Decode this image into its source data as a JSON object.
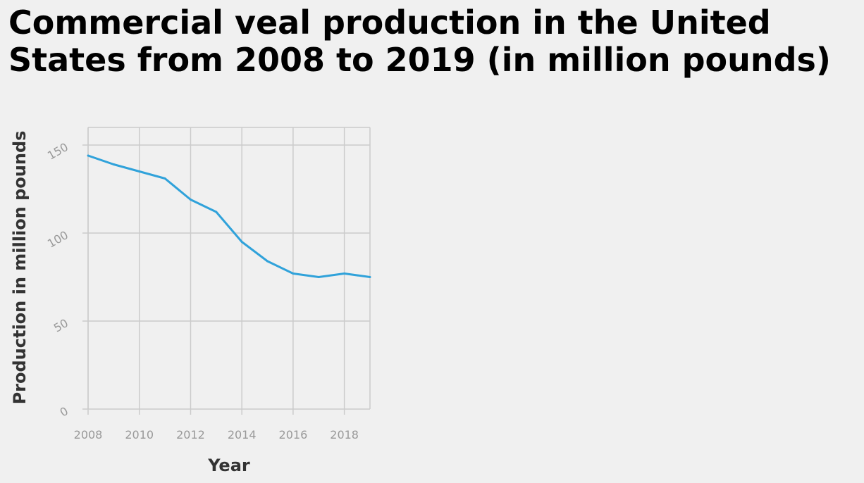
{
  "chart_data": {
    "type": "line",
    "title_lines": [
      "Commercial veal production in the United",
      "States from 2008 to 2019 (in million pounds)"
    ],
    "xlabel": "Year",
    "ylabel": "Production in million pounds",
    "xlim": [
      2008,
      2019
    ],
    "ylim": [
      0,
      160
    ],
    "x_ticks": [
      {
        "value": 2008,
        "label": "2008"
      },
      {
        "value": 2010,
        "label": "2010"
      },
      {
        "value": 2012,
        "label": "2012"
      },
      {
        "value": 2014,
        "label": "2014"
      },
      {
        "value": 2016,
        "label": "2016"
      },
      {
        "value": 2018,
        "label": "2018"
      }
    ],
    "y_ticks": [
      {
        "value": 0,
        "label": "0"
      },
      {
        "value": 50,
        "label": "50"
      },
      {
        "value": 100,
        "label": "100"
      },
      {
        "value": 150,
        "label": "150"
      }
    ],
    "grid": true,
    "legend": false,
    "series": [
      {
        "color": "#30a2da",
        "x": [
          2008,
          2009,
          2010,
          2011,
          2012,
          2013,
          2014,
          2015,
          2016,
          2017,
          2018,
          2019
        ],
        "y": [
          144,
          139,
          135,
          131,
          119,
          112,
          95,
          84,
          77,
          75,
          77,
          75
        ]
      }
    ]
  }
}
